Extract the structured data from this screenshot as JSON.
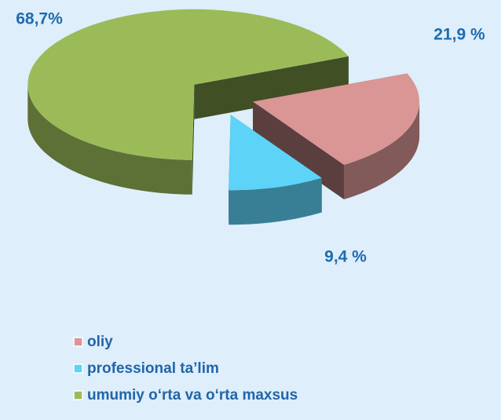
{
  "chart_data": {
    "type": "pie3d",
    "categories": [
      "oliy",
      "professional ta’lim",
      "umumiy o‘rta va o‘rta maxsus"
    ],
    "values": [
      21.9,
      9.4,
      68.7
    ],
    "value_labels": [
      "21,9 %",
      "9,4 %",
      "68,7%"
    ],
    "colors": [
      "#d99694",
      "#5dd3f8",
      "#9bbb59"
    ],
    "legend": "bottom-left"
  }
}
